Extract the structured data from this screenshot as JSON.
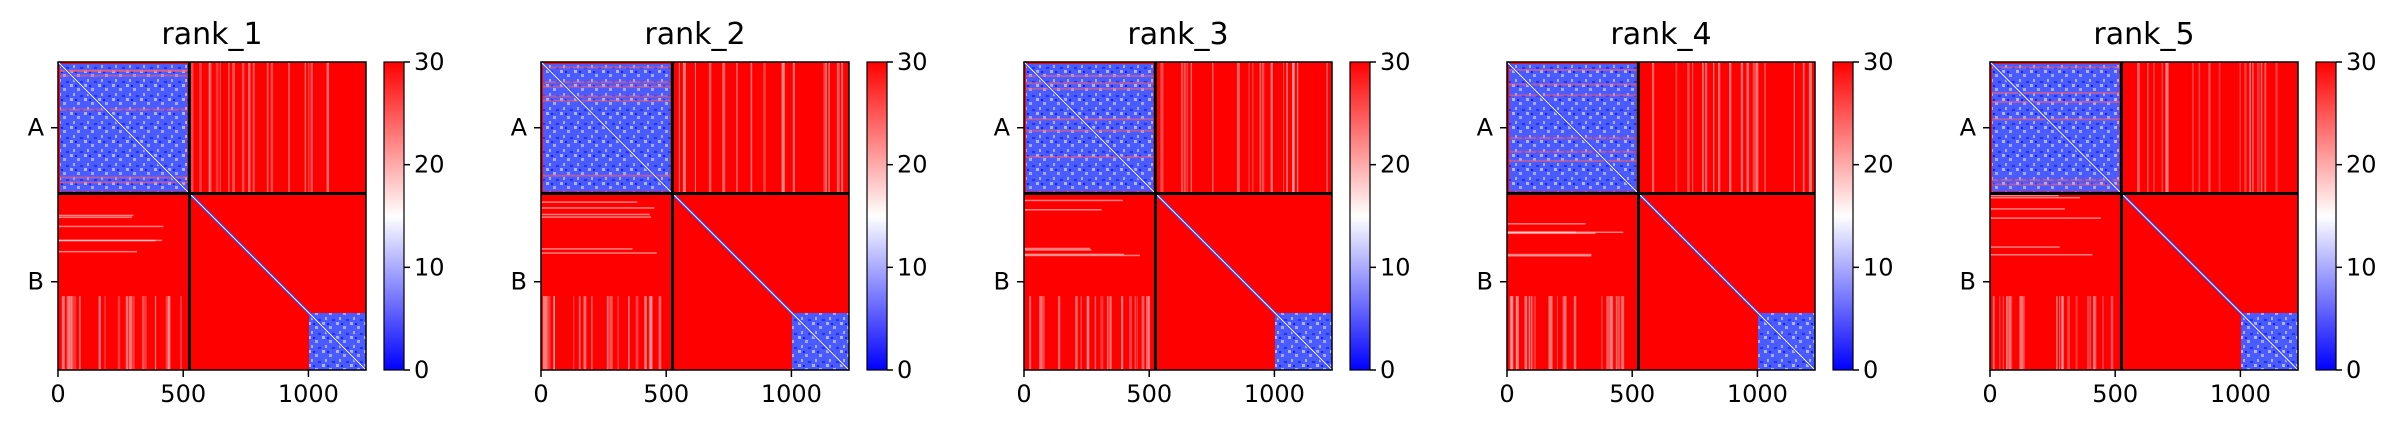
{
  "chart_data": [
    {
      "type": "heatmap",
      "title": "rank_1",
      "xlabel": "",
      "ylabel": "",
      "xlim": [
        0,
        1230
      ],
      "x_ticks": [
        "0",
        "500",
        "1000"
      ],
      "y_ticks": [
        "A",
        "B"
      ],
      "chain_boundary": 525,
      "colorbar": {
        "min": 0,
        "max": 30,
        "ticks": [
          "0",
          "10",
          "20",
          "30"
        ],
        "colormap": "bwr"
      }
    },
    {
      "type": "heatmap",
      "title": "rank_2",
      "xlabel": "",
      "ylabel": "",
      "xlim": [
        0,
        1230
      ],
      "x_ticks": [
        "0",
        "500",
        "1000"
      ],
      "y_ticks": [
        "A",
        "B"
      ],
      "chain_boundary": 525,
      "colorbar": {
        "min": 0,
        "max": 30,
        "ticks": [
          "0",
          "10",
          "20",
          "30"
        ],
        "colormap": "bwr"
      }
    },
    {
      "type": "heatmap",
      "title": "rank_3",
      "xlabel": "",
      "ylabel": "",
      "xlim": [
        0,
        1230
      ],
      "x_ticks": [
        "0",
        "500",
        "1000"
      ],
      "y_ticks": [
        "A",
        "B"
      ],
      "chain_boundary": 525,
      "colorbar": {
        "min": 0,
        "max": 30,
        "ticks": [
          "0",
          "10",
          "20",
          "30"
        ],
        "colormap": "bwr"
      }
    },
    {
      "type": "heatmap",
      "title": "rank_4",
      "xlabel": "",
      "ylabel": "",
      "xlim": [
        0,
        1230
      ],
      "x_ticks": [
        "0",
        "500",
        "1000"
      ],
      "y_ticks": [
        "A",
        "B"
      ],
      "chain_boundary": 525,
      "colorbar": {
        "min": 0,
        "max": 30,
        "ticks": [
          "0",
          "10",
          "20",
          "30"
        ],
        "colormap": "bwr"
      }
    },
    {
      "type": "heatmap",
      "title": "rank_5",
      "xlabel": "",
      "ylabel": "",
      "xlim": [
        0,
        1230
      ],
      "x_ticks": [
        "0",
        "500",
        "1000"
      ],
      "y_ticks": [
        "A",
        "B"
      ],
      "chain_boundary": 525,
      "colorbar": {
        "min": 0,
        "max": 30,
        "ticks": [
          "0",
          "10",
          "20",
          "30"
        ],
        "colormap": "bwr"
      }
    }
  ],
  "colors": {
    "high": "#ff0000",
    "mid": "#ffffff",
    "low": "#0000ff",
    "chain_line": "#000000"
  }
}
